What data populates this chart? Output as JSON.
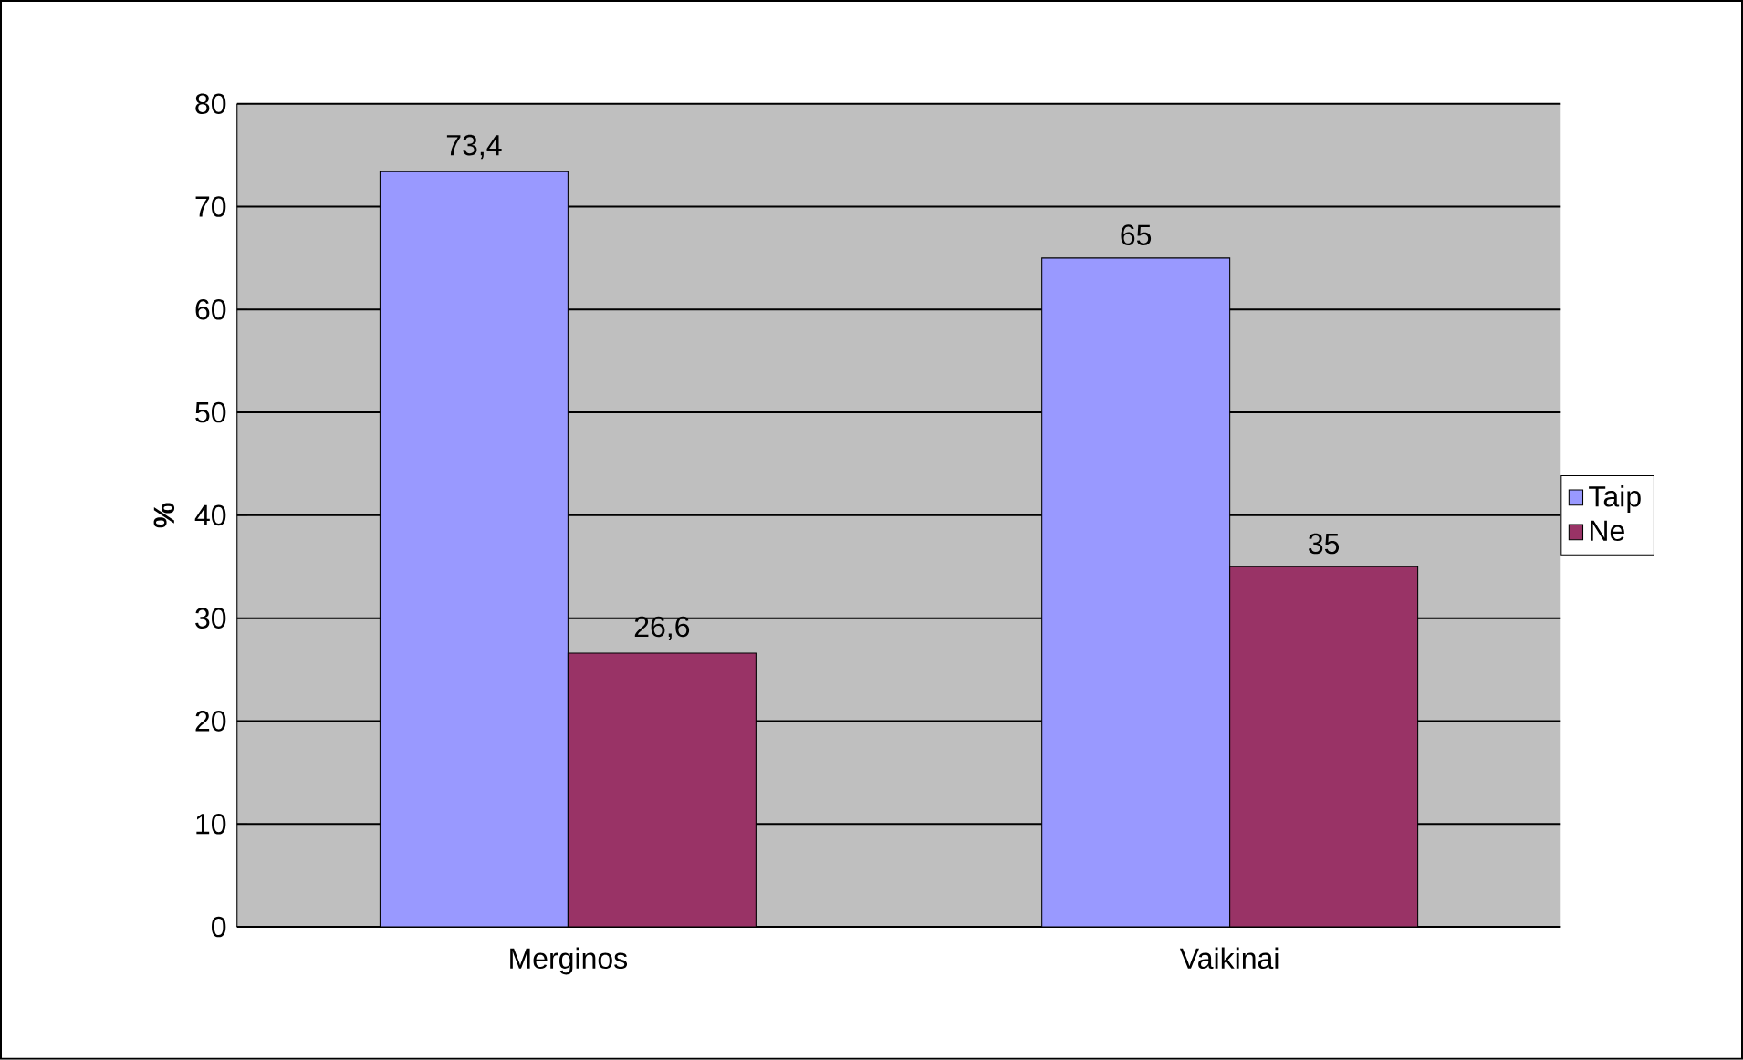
{
  "chart_data": {
    "type": "bar",
    "ylabel": "%",
    "categories": [
      "Merginos",
      "Vaikinai"
    ],
    "series": [
      {
        "name": "Taip",
        "color": "#9999ff",
        "values": [
          73.4,
          65
        ],
        "value_labels": [
          "73,4",
          "65"
        ]
      },
      {
        "name": "Ne",
        "color": "#993366",
        "values": [
          26.6,
          35
        ],
        "value_labels": [
          "26,6",
          "35"
        ]
      }
    ],
    "ylim": [
      0,
      80
    ],
    "yticks": [
      0,
      10,
      20,
      30,
      40,
      50,
      60,
      70,
      80
    ],
    "grid": "y",
    "legend": "right"
  }
}
